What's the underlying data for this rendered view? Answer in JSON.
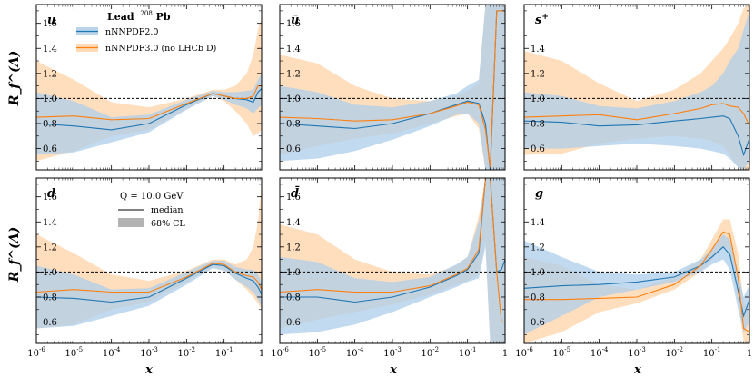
{
  "figure": {
    "y_axis_label": "R_f^(A)",
    "x_axis_label": "x",
    "legend_title_text": "Lead",
    "legend_title_sup": "208",
    "legend_title_element": "Pb",
    "legend_series": [
      "nNNPDF2.0",
      "nNNPDF3.0 (no LHCb D)"
    ],
    "legend2_q_label": "Q = 10.0 GeV",
    "legend2_median": "median",
    "legend2_cl": "68% CL",
    "colors": {
      "blue": "#1f77b4",
      "orange": "#ff7f0e",
      "band_blue": "#aecde9",
      "band_orange": "#ffd3a8"
    }
  },
  "chart_data": [
    {
      "type": "area",
      "panel": "u",
      "title": "u",
      "xscale": "log",
      "xlim": [
        1e-06,
        1
      ],
      "ylim": [
        0.43,
        1.75
      ],
      "yticks": [
        0.6,
        0.8,
        1.0,
        1.2,
        1.4,
        1.6
      ],
      "yticklabels": [
        "0.6",
        "0.8",
        "1.0",
        "1.2",
        "1.4",
        "1.6"
      ],
      "xticks": [
        1e-06,
        1e-05,
        0.0001,
        0.001,
        0.01,
        0.1,
        1
      ],
      "xticklabels": [
        "10^-6",
        "10^-5",
        "10^-4",
        "10^-3",
        "10^-2",
        "10^-1",
        "1"
      ],
      "reference_line": 1.0,
      "x": [
        1e-06,
        1e-05,
        0.0001,
        0.001,
        0.01,
        0.05,
        0.1,
        0.2,
        0.4,
        0.6,
        0.8,
        1
      ],
      "series": [
        {
          "name": "nNNPDF2.0",
          "median": [
            0.8,
            0.78,
            0.75,
            0.8,
            0.95,
            1.04,
            1.02,
            1.0,
            0.99,
            0.97,
            1.05,
            1.08
          ],
          "lower": [
            0.55,
            0.57,
            0.65,
            0.73,
            0.91,
            1.02,
            0.99,
            0.95,
            0.92,
            0.88,
            0.92,
            0.95
          ],
          "upper": [
            1.05,
            0.98,
            0.85,
            0.87,
            0.99,
            1.06,
            1.05,
            1.05,
            1.06,
            1.07,
            1.15,
            1.2
          ]
        },
        {
          "name": "nNNPDF3.0 (no LHCb D)",
          "median": [
            0.85,
            0.86,
            0.83,
            0.84,
            0.96,
            1.04,
            1.02,
            1.0,
            1.0,
            1.02,
            1.1,
            1.1
          ],
          "lower": [
            0.5,
            0.58,
            0.7,
            0.75,
            0.92,
            1.02,
            0.98,
            0.9,
            0.8,
            0.7,
            0.72,
            0.75
          ],
          "upper": [
            1.3,
            1.15,
            0.97,
            0.93,
            1.0,
            1.07,
            1.07,
            1.1,
            1.2,
            1.35,
            1.55,
            1.65
          ]
        }
      ]
    },
    {
      "type": "area",
      "panel": "ubar",
      "title": "ū",
      "xscale": "log",
      "xlim": [
        1e-06,
        1
      ],
      "ylim": [
        0.43,
        1.75
      ],
      "yticks": [
        0.6,
        0.8,
        1.0,
        1.2,
        1.4,
        1.6
      ],
      "yticklabels": [
        "0.6",
        "0.8",
        "1.0",
        "1.2",
        "1.4",
        "1.6"
      ],
      "xticks": [
        1e-06,
        1e-05,
        0.0001,
        0.001,
        0.01,
        0.1,
        1
      ],
      "xticklabels": [
        "10^-6",
        "10^-5",
        "10^-4",
        "10^-3",
        "10^-2",
        "10^-1",
        "1"
      ],
      "reference_line": 1.0,
      "x": [
        1e-06,
        1e-05,
        0.0001,
        0.001,
        0.01,
        0.05,
        0.1,
        0.2,
        0.3,
        0.4,
        0.6,
        0.8,
        1
      ],
      "series": [
        {
          "name": "nNNPDF2.0",
          "median": [
            0.8,
            0.78,
            0.76,
            0.8,
            0.88,
            0.95,
            0.98,
            0.96,
            0.8,
            0.3,
            1.7,
            1.7,
            1.7
          ],
          "lower": [
            0.5,
            0.52,
            0.58,
            0.67,
            0.78,
            0.87,
            0.88,
            0.8,
            0.43,
            0.43,
            0.43,
            0.43,
            0.43
          ],
          "upper": [
            1.1,
            1.05,
            0.95,
            0.93,
            0.98,
            1.04,
            1.1,
            1.15,
            1.75,
            1.75,
            1.75,
            1.75,
            1.75
          ]
        },
        {
          "name": "nNNPDF3.0 (no LHCb D)",
          "median": [
            0.85,
            0.84,
            0.82,
            0.83,
            0.88,
            0.94,
            0.97,
            0.95,
            0.75,
            0.45,
            1.7,
            1.7,
            1.7
          ],
          "lower": [
            0.55,
            0.62,
            0.68,
            0.72,
            0.8,
            0.86,
            0.88,
            0.76,
            0.43,
            0.43,
            0.43,
            0.43,
            0.43
          ],
          "upper": [
            1.35,
            1.28,
            1.1,
            1.0,
            0.98,
            1.02,
            1.06,
            1.12,
            1.75,
            1.75,
            1.75,
            1.75,
            1.75
          ]
        }
      ]
    },
    {
      "type": "area",
      "panel": "splus",
      "title": "s+",
      "xscale": "log",
      "xlim": [
        1e-06,
        1
      ],
      "ylim": [
        0.43,
        1.75
      ],
      "yticks": [
        0.6,
        0.8,
        1.0,
        1.2,
        1.4
      ],
      "yticklabels": [
        "0.6",
        "0.8",
        "1.0",
        "1.2",
        "1.4"
      ],
      "xticks": [
        1e-06,
        1e-05,
        0.0001,
        0.001,
        0.01,
        0.1,
        1
      ],
      "xticklabels": [
        "10^-6",
        "10^-5",
        "10^-4",
        "10^-3",
        "10^-2",
        "10^-1",
        "1"
      ],
      "reference_line": 1.0,
      "x": [
        1e-06,
        1e-05,
        0.0001,
        0.001,
        0.01,
        0.05,
        0.1,
        0.2,
        0.3,
        0.5,
        0.7,
        1
      ],
      "series": [
        {
          "name": "nNNPDF2.0",
          "median": [
            0.82,
            0.81,
            0.78,
            0.79,
            0.82,
            0.84,
            0.85,
            0.86,
            0.84,
            0.7,
            0.55,
            0.68
          ],
          "lower": [
            0.6,
            0.6,
            0.62,
            0.64,
            0.62,
            0.6,
            0.58,
            0.56,
            0.52,
            0.45,
            0.43,
            0.5
          ],
          "upper": [
            1.05,
            1.02,
            0.94,
            0.92,
            0.98,
            1.05,
            1.1,
            1.2,
            1.3,
            1.4,
            1.55,
            1.7
          ]
        },
        {
          "name": "nNNPDF3.0 (no LHCb D)",
          "median": [
            0.85,
            0.86,
            0.87,
            0.83,
            0.88,
            0.92,
            0.95,
            0.96,
            0.94,
            0.93,
            0.88,
            0.78
          ],
          "lower": [
            0.55,
            0.56,
            0.64,
            0.68,
            0.7,
            0.68,
            0.66,
            0.62,
            0.55,
            0.45,
            0.43,
            0.43
          ],
          "upper": [
            1.38,
            1.3,
            1.12,
            0.98,
            1.07,
            1.2,
            1.3,
            1.4,
            1.48,
            1.6,
            1.72,
            1.75
          ]
        }
      ]
    },
    {
      "type": "area",
      "panel": "d",
      "title": "d",
      "xscale": "log",
      "xlim": [
        1e-06,
        1
      ],
      "ylim": [
        0.43,
        1.75
      ],
      "yticks": [
        0.6,
        0.8,
        1.0,
        1.2,
        1.4,
        1.6
      ],
      "yticklabels": [
        "0.6",
        "0.8",
        "1.0",
        "1.2",
        "1.4",
        "1.6"
      ],
      "xticks": [
        1e-06,
        1e-05,
        0.0001,
        0.001,
        0.01,
        0.1,
        1
      ],
      "xticklabels": [
        "10^-6",
        "10^-5",
        "10^-4",
        "10^-3",
        "10^-2",
        "10^-1",
        "1"
      ],
      "reference_line": 1.0,
      "x": [
        1e-06,
        1e-05,
        0.0001,
        0.001,
        0.01,
        0.05,
        0.1,
        0.2,
        0.4,
        0.6,
        0.8,
        1
      ],
      "series": [
        {
          "name": "nNNPDF2.0",
          "median": [
            0.8,
            0.79,
            0.76,
            0.8,
            0.95,
            1.06,
            1.05,
            0.99,
            0.95,
            0.93,
            0.88,
            0.82
          ],
          "lower": [
            0.55,
            0.57,
            0.65,
            0.73,
            0.9,
            1.03,
            1.01,
            0.94,
            0.88,
            0.84,
            0.78,
            0.72
          ],
          "upper": [
            1.05,
            0.98,
            0.86,
            0.87,
            1.0,
            1.09,
            1.09,
            1.04,
            1.02,
            1.02,
            0.98,
            0.92
          ]
        },
        {
          "name": "nNNPDF3.0 (no LHCb D)",
          "median": [
            0.84,
            0.86,
            0.84,
            0.84,
            0.96,
            1.07,
            1.06,
            1.0,
            0.97,
            0.96,
            0.92,
            0.86
          ],
          "lower": [
            0.55,
            0.58,
            0.7,
            0.76,
            0.92,
            1.04,
            1.02,
            0.94,
            0.86,
            0.8,
            0.75,
            0.7
          ],
          "upper": [
            1.3,
            1.15,
            0.98,
            0.93,
            1.01,
            1.1,
            1.1,
            1.06,
            1.1,
            1.2,
            1.4,
            1.72
          ]
        }
      ]
    },
    {
      "type": "area",
      "panel": "dbar",
      "title": "d̄",
      "xscale": "log",
      "xlim": [
        1e-06,
        1
      ],
      "ylim": [
        0.43,
        1.75
      ],
      "yticks": [
        0.6,
        0.8,
        1.0,
        1.2,
        1.4,
        1.6
      ],
      "yticklabels": [
        "0.6",
        "0.8",
        "1.0",
        "1.2",
        "1.4",
        "1.6"
      ],
      "xticks": [
        1e-06,
        1e-05,
        0.0001,
        0.001,
        0.01,
        0.1,
        1
      ],
      "xticklabels": [
        "10^-6",
        "10^-5",
        "10^-4",
        "10^-3",
        "10^-2",
        "10^-1",
        "1"
      ],
      "reference_line": 1.0,
      "x": [
        1e-06,
        1e-05,
        0.0001,
        0.001,
        0.01,
        0.05,
        0.1,
        0.2,
        0.3,
        0.4,
        0.6,
        0.8,
        1
      ],
      "series": [
        {
          "name": "nNNPDF2.0",
          "median": [
            0.8,
            0.8,
            0.76,
            0.8,
            0.88,
            0.97,
            1.02,
            1.15,
            1.75,
            1.75,
            1.0,
            1.02,
            1.1
          ],
          "lower": [
            0.5,
            0.52,
            0.58,
            0.68,
            0.8,
            0.88,
            0.92,
            0.95,
            1.2,
            0.43,
            0.43,
            0.43,
            0.43
          ],
          "upper": [
            1.12,
            1.08,
            0.95,
            0.92,
            0.96,
            1.06,
            1.12,
            1.4,
            1.75,
            1.75,
            1.75,
            1.75,
            1.75
          ]
        },
        {
          "name": "nNNPDF3.0 (no LHCb D)",
          "median": [
            0.84,
            0.86,
            0.84,
            0.84,
            0.89,
            0.98,
            1.03,
            1.18,
            1.75,
            1.75,
            1.0,
            0.6,
            0.6
          ],
          "lower": [
            0.55,
            0.62,
            0.68,
            0.74,
            0.82,
            0.9,
            0.93,
            0.98,
            1.25,
            0.43,
            0.43,
            0.43,
            0.43
          ],
          "upper": [
            1.38,
            1.3,
            1.1,
            1.0,
            0.98,
            1.05,
            1.12,
            1.45,
            1.75,
            1.75,
            1.75,
            1.75,
            1.75
          ]
        }
      ]
    },
    {
      "type": "area",
      "panel": "g",
      "title": "g",
      "xscale": "log",
      "xlim": [
        1e-06,
        1
      ],
      "ylim": [
        0.43,
        1.75
      ],
      "yticks": [
        0.6,
        0.8,
        1.0,
        1.2,
        1.4
      ],
      "yticklabels": [
        "0.6",
        "0.8",
        "1.0",
        "1.2",
        "1.4"
      ],
      "xticks": [
        1e-06,
        1e-05,
        0.0001,
        0.001,
        0.01,
        0.1,
        1
      ],
      "xticklabels": [
        "10^-6",
        "10^-5",
        "10^-4",
        "10^-3",
        "10^-2",
        "10^-1",
        "1"
      ],
      "reference_line": 1.0,
      "x": [
        1e-06,
        1e-05,
        0.0001,
        0.001,
        0.01,
        0.05,
        0.1,
        0.2,
        0.3,
        0.5,
        0.7,
        1
      ],
      "series": [
        {
          "name": "nNNPDF2.0",
          "median": [
            0.87,
            0.89,
            0.9,
            0.92,
            0.96,
            1.05,
            1.12,
            1.2,
            1.14,
            0.85,
            0.65,
            0.78
          ],
          "lower": [
            0.5,
            0.65,
            0.8,
            0.86,
            0.92,
            1.0,
            1.06,
            1.1,
            1.02,
            0.7,
            0.52,
            0.6
          ],
          "upper": [
            1.25,
            1.12,
            1.0,
            0.98,
            1.0,
            1.1,
            1.18,
            1.3,
            1.26,
            1.0,
            0.8,
            0.9
          ]
        },
        {
          "name": "nNNPDF3.0 (no LHCb D)",
          "median": [
            0.78,
            0.78,
            0.79,
            0.8,
            0.9,
            1.05,
            1.18,
            1.32,
            1.3,
            0.95,
            0.55,
            0.52
          ],
          "lower": [
            0.43,
            0.52,
            0.68,
            0.75,
            0.86,
            1.0,
            1.1,
            1.2,
            1.18,
            0.75,
            0.45,
            0.43
          ],
          "upper": [
            1.12,
            1.05,
            0.9,
            0.86,
            0.96,
            1.1,
            1.26,
            1.42,
            1.42,
            1.15,
            0.75,
            0.72
          ]
        }
      ]
    }
  ]
}
